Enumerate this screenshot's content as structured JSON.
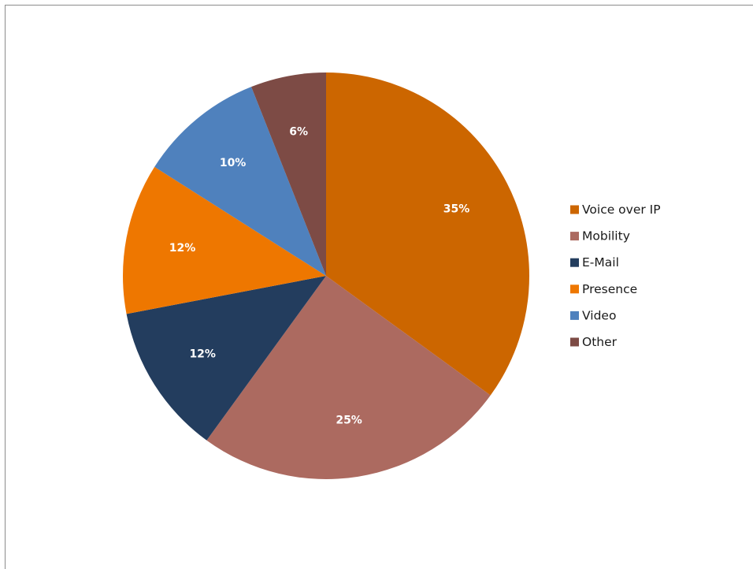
{
  "chart_data": {
    "type": "pie",
    "categories": [
      "Voice over IP",
      "Mobility",
      "E-Mail",
      "Presence",
      "Video",
      "Other"
    ],
    "values": [
      35,
      25,
      12,
      12,
      10,
      6
    ],
    "labels": [
      "35%",
      "25%",
      "12%",
      "12%",
      "10%",
      "6%"
    ],
    "colors": [
      "#CC6600",
      "#AC6A60",
      "#233D5E",
      "#EE7700",
      "#4F81BD",
      "#7D4B45"
    ],
    "start_angle": "12 o'clock",
    "direction": "clockwise",
    "legend_position": "right",
    "legend": [
      "Voice over IP",
      "Mobility",
      "E-Mail",
      "Presence",
      "Video",
      "Other"
    ]
  }
}
